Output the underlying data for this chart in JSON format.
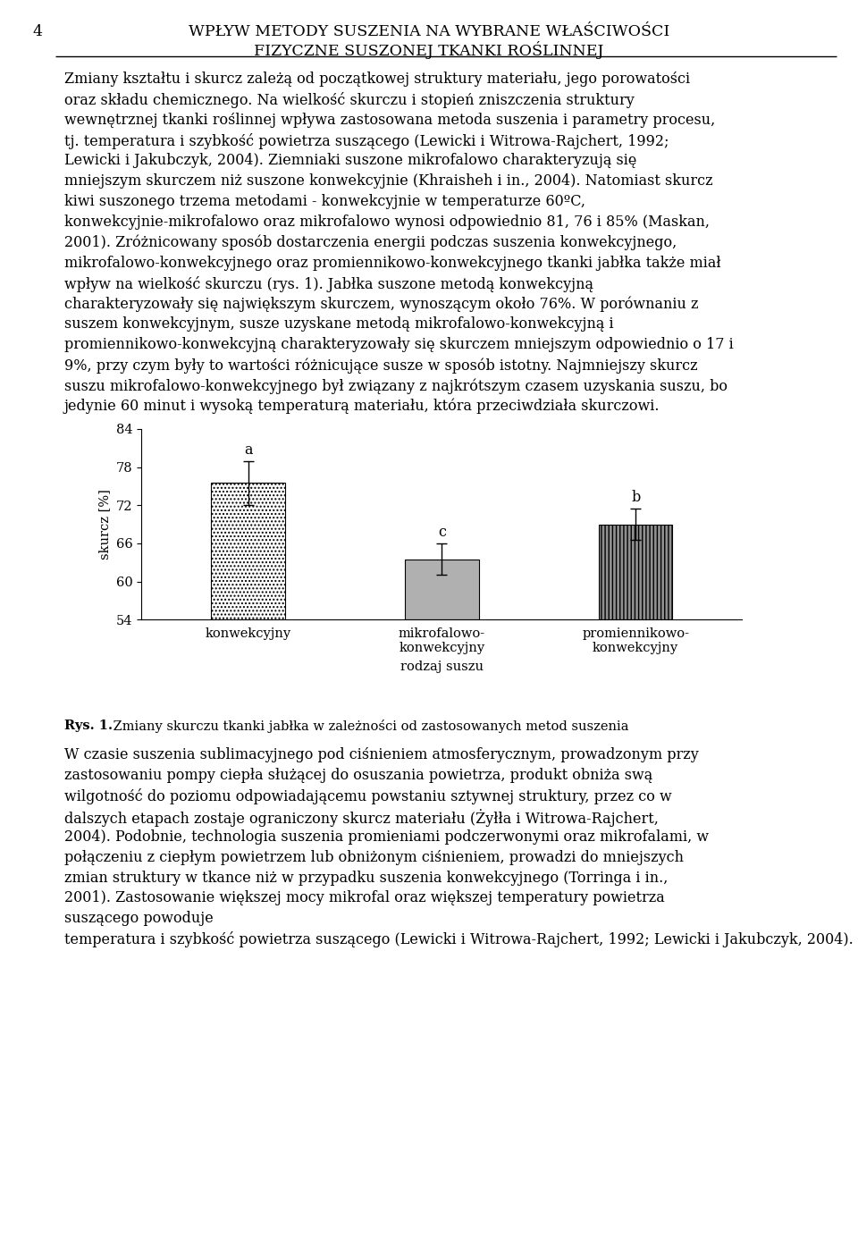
{
  "page_number": "4",
  "header_line1": "WPŁYW METODY SUSZENIA NA WYBRANE WŁAŚCIWOŚCI",
  "header_line2": "FIZYCZNE SUSZONEJ TKANKI ROŚLINNEJ",
  "paragraph1": "Zmiany kształtu i skurcz zależą od początkowej struktury materiału, jego porowatości oraz składu chemicznego. Na wielkość skurczu i stopień zniszczenia struktury wewnętrznej tkanki roślinnej wpływa zastosowana metoda suszenia i parametry procesu, tj. temperatura i szybkość powietrza suszącego (Lewicki i Witrowa-Rajchert, 1992; Lewicki i Jakubczyk, 2004). Ziemniaki suszone mikrofalowo charakteryzują się mniejszym skurczem niż suszone konwekcyjnie (Khraisheh i in., 2004). Natomiast skurcz kiwi suszonego trzema metodami - konwekcyjnie w temperaturze 60ºC, konwekcyjnie-mikrofalowo oraz mikrofalowo wynosi odpowiednio 81, 76 i 85% (Maskan, 2001). Zróżnicowany sposób dostarczenia energii podczas suszenia konwekcyjnego, mikrofalowo-konwekcyjnego oraz promiennikowo-konwekcyjnego tkanki jabłka także miał wpływ na wielkość skurczu (rys. 1). Jabłka suszone metodą konwekcyjną charakteryzowały się największym skurczem, wynoszącym około 76%. W porównaniu z suszem konwekcyjnym, susze uzyskane metodą mikrofalowo-konwekcyjną i promiennikowo-konwekcyjną charakteryzowały się skurczem mniejszym odpowiednio o 17 i 9%, przy czym były to wartości różnicujące susze w sposób istotny. Najmniejszy skurcz suszu mikrofalowo-konwekcyjnego był związany z najkrótszym czasem uzyskania suszu, bo jedynie 60 minut i wysoką temperaturą materiału, która przeciwdziała skurczowi.",
  "bar_labels": [
    "konwekcyjny",
    "mikrofalowo-\nkonwekcyjny",
    "promiennikowo-\nkonwekcyjny"
  ],
  "bar_values": [
    75.5,
    63.5,
    69.0
  ],
  "bar_errors": [
    3.5,
    2.5,
    2.5
  ],
  "bar_significance": [
    "a",
    "c",
    "b"
  ],
  "bar_colors": [
    "white",
    "#b0b0b0",
    "#909090"
  ],
  "bar_hatches": [
    "....",
    "",
    "||||"
  ],
  "ylabel": "skurcz [%]",
  "xlabel": "rodzaj suszu",
  "ylim": [
    54,
    84
  ],
  "yticks": [
    54,
    60,
    66,
    72,
    78,
    84
  ],
  "figure_caption_bold": "Rys. 1.",
  "figure_caption_rest": " Zmiany skurczu tkanki jabłka w zależności od zastosowanych metod suszenia",
  "paragraph2": "W czasie suszenia sublimacyjnego pod ciśnieniem atmosferycznym, prowadzonym przy zastosowaniu pompy ciepła służącej do osuszania powietrza, produkt obniża swą wilgotność do poziomu odpowiadającemu powstaniu sztywnej struktury, przez co w dalszych etapach zostaje ograniczony skurcz materiału (Żyłła i Witrowa-Rajchert, 2004). Podobnie, technologia suszenia promieniami podczerwonymi oraz mikrofalami, w połączeniu z ciepłym powietrzem lub obniżonym ciśnieniem, prowadzi do mniejszych zmian struktury w tkance niż w przypadku suszenia konwekcyjnego (Torringa i in., 2001). Zastosowanie większej mocy mikrofal oraz większej temperatury powietrza suszącego powoduje",
  "last_line": "temperatura i szybkość powietrza suszącego (Lewicki i Witrowa-Rajchert, 1992; Lewicki i Jakubczyk, 2004).",
  "text_color": "#000000",
  "background_color": "#ffffff",
  "fig_width": 9.6,
  "fig_height": 14.03
}
